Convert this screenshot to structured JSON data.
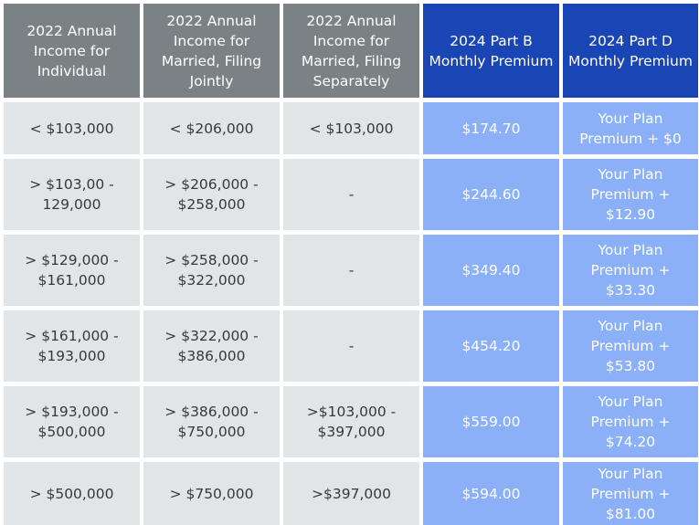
{
  "table": {
    "headers": [
      "2022 Annual\nIncome for\nIndividual",
      "2022 Annual\nIncome for\nMarried, Filing\nJointly",
      "2022 Annual\nIncome for\nMarried, Filing\nSeparately",
      "2024 Part B\nMonthly Premium",
      "2024 Part D\nMonthly Premium"
    ],
    "rows": [
      [
        "< $103,000",
        "< $206,000",
        "< $103,000",
        "$174.70",
        "Your Plan\nPremium + $0"
      ],
      [
        "> $103,00 -\n129,000",
        "> $206,000 -\n$258,000",
        "-",
        "$244.60",
        "Your Plan\nPremium + $12.90"
      ],
      [
        "> $129,000 -\n$161,000",
        "> $258,000 -\n$322,000",
        "-",
        "$349.40",
        "Your Plan\nPremium + $33.30"
      ],
      [
        "> $161,000 -\n$193,000",
        "> $322,000 -\n$386,000",
        "-",
        "$454.20",
        "Your Plan\nPremium + $53.80"
      ],
      [
        "> $193,000 -\n$500,000",
        "> $386,000 -\n$750,000",
        ">$103,000 -\n$397,000",
        "$559.00",
        "Your Plan\nPremium + $74.20"
      ],
      [
        "> $500,000",
        "> $750,000",
        ">$397,000",
        "$594.00",
        "Your Plan\nPremium + $81.00"
      ]
    ]
  }
}
